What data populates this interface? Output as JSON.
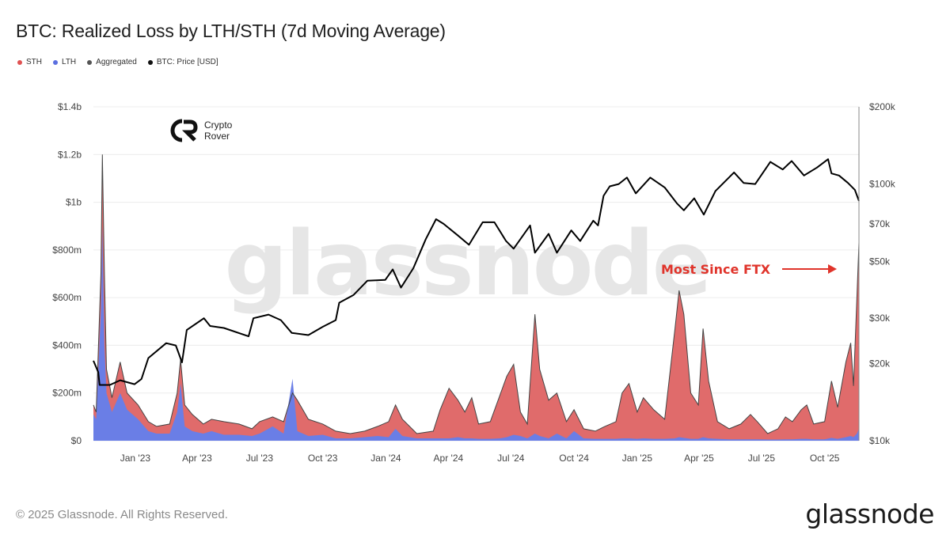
{
  "title": "BTC: Realized Loss by LTH/STH (7d Moving Average)",
  "legend": [
    {
      "label": "STH",
      "color": "#e05252"
    },
    {
      "label": "LTH",
      "color": "#5b6fe0"
    },
    {
      "label": "Aggregated",
      "color": "#555555"
    },
    {
      "label": "BTC: Price [USD]",
      "color": "#111111"
    }
  ],
  "watermark": "glassnode",
  "logo": {
    "line1": "Crypto",
    "line2": "Rover"
  },
  "annotation": "Most Since FTX",
  "footer": "© 2025 Glassnode. All Rights Reserved.",
  "brand": "glassnode",
  "colors": {
    "sth": "#e06b6b",
    "lth": "#6a7ee6",
    "aggregated": "#444444",
    "price": "#000000",
    "annotation": "#e0342b"
  },
  "chart_data": {
    "type": "area",
    "x_start": "2022-11-01",
    "x_end": "2025-11-20",
    "x_ticks": [
      "Jan '23",
      "Apr '23",
      "Jul '23",
      "Oct '23",
      "Jan '24",
      "Apr '24",
      "Jul '24",
      "Oct '24",
      "Jan '25",
      "Apr '25",
      "Jul '25",
      "Oct '25"
    ],
    "x_tick_dates": [
      "2023-01-01",
      "2023-04-01",
      "2023-07-01",
      "2023-10-01",
      "2024-01-01",
      "2024-04-01",
      "2024-07-01",
      "2024-10-01",
      "2025-01-01",
      "2025-04-01",
      "2025-07-01",
      "2025-10-01"
    ],
    "y_left": {
      "ticks": [
        "$0",
        "$200m",
        "$400m",
        "$600m",
        "$800m",
        "$1b",
        "$1.2b",
        "$1.4b"
      ],
      "range": [
        0,
        1400
      ],
      "unit": "USD millions"
    },
    "y_right": {
      "ticks": [
        "$10k",
        "$20k",
        "$30k",
        "$50k",
        "$70k",
        "$100k",
        "$200k"
      ],
      "tick_values": [
        10000,
        20000,
        30000,
        50000,
        70000,
        100000,
        200000
      ],
      "scale": "log",
      "range": [
        10000,
        200000
      ]
    },
    "series": [
      {
        "name": "STH",
        "role": "realized_loss_sth",
        "points": [
          [
            "2022-11-01",
            150
          ],
          [
            "2022-11-05",
            120
          ],
          [
            "2022-11-12",
            700
          ],
          [
            "2022-11-14",
            1200
          ],
          [
            "2022-11-17",
            700
          ],
          [
            "2022-11-20",
            300
          ],
          [
            "2022-11-28",
            180
          ],
          [
            "2022-12-10",
            330
          ],
          [
            "2022-12-20",
            200
          ],
          [
            "2023-01-05",
            150
          ],
          [
            "2023-01-20",
            80
          ],
          [
            "2023-02-01",
            60
          ],
          [
            "2023-02-20",
            70
          ],
          [
            "2023-03-03",
            200
          ],
          [
            "2023-03-08",
            340
          ],
          [
            "2023-03-14",
            150
          ],
          [
            "2023-03-25",
            110
          ],
          [
            "2023-04-10",
            70
          ],
          [
            "2023-04-22",
            90
          ],
          [
            "2023-05-10",
            80
          ],
          [
            "2023-06-01",
            70
          ],
          [
            "2023-06-20",
            50
          ],
          [
            "2023-07-01",
            80
          ],
          [
            "2023-07-20",
            100
          ],
          [
            "2023-08-05",
            80
          ],
          [
            "2023-08-18",
            200
          ],
          [
            "2023-08-25",
            170
          ],
          [
            "2023-09-10",
            90
          ],
          [
            "2023-10-01",
            70
          ],
          [
            "2023-10-20",
            40
          ],
          [
            "2023-11-10",
            30
          ],
          [
            "2023-12-01",
            40
          ],
          [
            "2023-12-20",
            60
          ],
          [
            "2024-01-05",
            80
          ],
          [
            "2024-01-15",
            150
          ],
          [
            "2024-01-25",
            90
          ],
          [
            "2024-02-15",
            30
          ],
          [
            "2024-03-10",
            40
          ],
          [
            "2024-03-20",
            130
          ],
          [
            "2024-04-02",
            220
          ],
          [
            "2024-04-15",
            170
          ],
          [
            "2024-04-25",
            120
          ],
          [
            "2024-05-05",
            180
          ],
          [
            "2024-05-15",
            70
          ],
          [
            "2024-06-01",
            80
          ],
          [
            "2024-06-15",
            190
          ],
          [
            "2024-06-25",
            270
          ],
          [
            "2024-07-05",
            320
          ],
          [
            "2024-07-15",
            120
          ],
          [
            "2024-07-25",
            70
          ],
          [
            "2024-08-05",
            530
          ],
          [
            "2024-08-12",
            300
          ],
          [
            "2024-08-25",
            170
          ],
          [
            "2024-09-06",
            200
          ],
          [
            "2024-09-20",
            80
          ],
          [
            "2024-10-01",
            130
          ],
          [
            "2024-10-15",
            50
          ],
          [
            "2024-11-01",
            40
          ],
          [
            "2024-11-15",
            60
          ],
          [
            "2024-12-01",
            80
          ],
          [
            "2024-12-10",
            200
          ],
          [
            "2024-12-20",
            240
          ],
          [
            "2025-01-01",
            120
          ],
          [
            "2025-01-10",
            180
          ],
          [
            "2025-01-25",
            130
          ],
          [
            "2025-02-10",
            90
          ],
          [
            "2025-02-25",
            470
          ],
          [
            "2025-03-03",
            630
          ],
          [
            "2025-03-10",
            530
          ],
          [
            "2025-03-20",
            200
          ],
          [
            "2025-03-31",
            150
          ],
          [
            "2025-04-07",
            470
          ],
          [
            "2025-04-15",
            250
          ],
          [
            "2025-04-28",
            80
          ],
          [
            "2025-05-15",
            50
          ],
          [
            "2025-06-01",
            70
          ],
          [
            "2025-06-15",
            110
          ],
          [
            "2025-06-25",
            80
          ],
          [
            "2025-07-10",
            30
          ],
          [
            "2025-07-25",
            50
          ],
          [
            "2025-08-05",
            100
          ],
          [
            "2025-08-15",
            80
          ],
          [
            "2025-08-28",
            130
          ],
          [
            "2025-09-05",
            150
          ],
          [
            "2025-09-15",
            70
          ],
          [
            "2025-10-01",
            80
          ],
          [
            "2025-10-11",
            250
          ],
          [
            "2025-10-20",
            140
          ],
          [
            "2025-11-01",
            330
          ],
          [
            "2025-11-08",
            410
          ],
          [
            "2025-11-12",
            230
          ],
          [
            "2025-11-17",
            600
          ],
          [
            "2025-11-20",
            830
          ]
        ]
      },
      {
        "name": "LTH",
        "role": "realized_loss_lth",
        "points": [
          [
            "2022-11-01",
            110
          ],
          [
            "2022-11-05",
            90
          ],
          [
            "2022-11-12",
            550
          ],
          [
            "2022-11-14",
            900
          ],
          [
            "2022-11-17",
            400
          ],
          [
            "2022-11-20",
            200
          ],
          [
            "2022-11-28",
            120
          ],
          [
            "2022-12-10",
            200
          ],
          [
            "2022-12-20",
            130
          ],
          [
            "2023-01-05",
            90
          ],
          [
            "2023-01-20",
            40
          ],
          [
            "2023-02-01",
            30
          ],
          [
            "2023-02-20",
            30
          ],
          [
            "2023-03-03",
            120
          ],
          [
            "2023-03-08",
            240
          ],
          [
            "2023-03-14",
            60
          ],
          [
            "2023-03-25",
            40
          ],
          [
            "2023-04-10",
            30
          ],
          [
            "2023-04-22",
            40
          ],
          [
            "2023-05-10",
            25
          ],
          [
            "2023-06-01",
            25
          ],
          [
            "2023-06-20",
            20
          ],
          [
            "2023-07-01",
            30
          ],
          [
            "2023-07-20",
            60
          ],
          [
            "2023-08-05",
            30
          ],
          [
            "2023-08-18",
            260
          ],
          [
            "2023-08-25",
            40
          ],
          [
            "2023-09-10",
            20
          ],
          [
            "2023-10-01",
            25
          ],
          [
            "2023-10-20",
            10
          ],
          [
            "2023-11-10",
            10
          ],
          [
            "2023-12-01",
            15
          ],
          [
            "2023-12-20",
            20
          ],
          [
            "2024-01-05",
            15
          ],
          [
            "2024-01-15",
            50
          ],
          [
            "2024-01-25",
            20
          ],
          [
            "2024-02-15",
            10
          ],
          [
            "2024-03-10",
            10
          ],
          [
            "2024-03-20",
            10
          ],
          [
            "2024-04-02",
            10
          ],
          [
            "2024-04-15",
            15
          ],
          [
            "2024-04-25",
            10
          ],
          [
            "2024-05-05",
            10
          ],
          [
            "2024-05-15",
            8
          ],
          [
            "2024-06-01",
            8
          ],
          [
            "2024-06-15",
            10
          ],
          [
            "2024-06-25",
            15
          ],
          [
            "2024-07-05",
            25
          ],
          [
            "2024-07-15",
            20
          ],
          [
            "2024-07-25",
            10
          ],
          [
            "2024-08-05",
            30
          ],
          [
            "2024-08-12",
            20
          ],
          [
            "2024-08-25",
            10
          ],
          [
            "2024-09-06",
            30
          ],
          [
            "2024-09-20",
            10
          ],
          [
            "2024-10-01",
            40
          ],
          [
            "2024-10-15",
            10
          ],
          [
            "2024-11-01",
            8
          ],
          [
            "2024-11-15",
            8
          ],
          [
            "2024-12-01",
            8
          ],
          [
            "2024-12-10",
            10
          ],
          [
            "2024-12-20",
            10
          ],
          [
            "2025-01-01",
            8
          ],
          [
            "2025-01-10",
            10
          ],
          [
            "2025-01-25",
            8
          ],
          [
            "2025-02-10",
            8
          ],
          [
            "2025-02-25",
            10
          ],
          [
            "2025-03-03",
            15
          ],
          [
            "2025-03-10",
            12
          ],
          [
            "2025-03-20",
            8
          ],
          [
            "2025-03-31",
            8
          ],
          [
            "2025-04-07",
            15
          ],
          [
            "2025-04-15",
            10
          ],
          [
            "2025-04-28",
            8
          ],
          [
            "2025-05-15",
            6
          ],
          [
            "2025-06-01",
            6
          ],
          [
            "2025-06-15",
            6
          ],
          [
            "2025-06-25",
            6
          ],
          [
            "2025-07-10",
            5
          ],
          [
            "2025-07-25",
            5
          ],
          [
            "2025-08-05",
            6
          ],
          [
            "2025-08-15",
            6
          ],
          [
            "2025-08-28",
            8
          ],
          [
            "2025-09-05",
            8
          ],
          [
            "2025-09-15",
            6
          ],
          [
            "2025-10-01",
            6
          ],
          [
            "2025-10-11",
            12
          ],
          [
            "2025-10-20",
            8
          ],
          [
            "2025-11-01",
            15
          ],
          [
            "2025-11-08",
            20
          ],
          [
            "2025-11-12",
            15
          ],
          [
            "2025-11-17",
            30
          ],
          [
            "2025-11-20",
            50
          ]
        ]
      },
      {
        "name": "BTC: Price [USD]",
        "role": "price",
        "points": [
          [
            "2022-11-01",
            20500
          ],
          [
            "2022-11-08",
            18500
          ],
          [
            "2022-11-10",
            16500
          ],
          [
            "2022-11-25",
            16500
          ],
          [
            "2022-12-10",
            17200
          ],
          [
            "2022-12-31",
            16600
          ],
          [
            "2023-01-10",
            17400
          ],
          [
            "2023-01-20",
            21000
          ],
          [
            "2023-02-15",
            24000
          ],
          [
            "2023-03-01",
            23500
          ],
          [
            "2023-03-10",
            20200
          ],
          [
            "2023-03-17",
            27000
          ],
          [
            "2023-04-11",
            30000
          ],
          [
            "2023-04-20",
            28000
          ],
          [
            "2023-05-10",
            27500
          ],
          [
            "2023-06-15",
            25500
          ],
          [
            "2023-06-22",
            30000
          ],
          [
            "2023-07-14",
            31000
          ],
          [
            "2023-08-01",
            29500
          ],
          [
            "2023-08-17",
            26300
          ],
          [
            "2023-09-10",
            25800
          ],
          [
            "2023-10-01",
            27800
          ],
          [
            "2023-10-20",
            29500
          ],
          [
            "2023-10-25",
            34500
          ],
          [
            "2023-11-15",
            37000
          ],
          [
            "2023-12-05",
            42000
          ],
          [
            "2023-12-31",
            42300
          ],
          [
            "2024-01-11",
            46500
          ],
          [
            "2024-01-23",
            39500
          ],
          [
            "2024-02-10",
            47000
          ],
          [
            "2024-02-28",
            61000
          ],
          [
            "2024-03-14",
            73000
          ],
          [
            "2024-03-25",
            70000
          ],
          [
            "2024-04-15",
            63000
          ],
          [
            "2024-05-01",
            58000
          ],
          [
            "2024-05-21",
            71000
          ],
          [
            "2024-06-07",
            71000
          ],
          [
            "2024-06-24",
            60000
          ],
          [
            "2024-07-05",
            56000
          ],
          [
            "2024-07-29",
            69000
          ],
          [
            "2024-08-05",
            54000
          ],
          [
            "2024-08-25",
            64000
          ],
          [
            "2024-09-06",
            54000
          ],
          [
            "2024-09-27",
            66000
          ],
          [
            "2024-10-10",
            60000
          ],
          [
            "2024-10-29",
            72000
          ],
          [
            "2024-11-05",
            69000
          ],
          [
            "2024-11-13",
            90000
          ],
          [
            "2024-11-22",
            98000
          ],
          [
            "2024-12-05",
            100000
          ],
          [
            "2024-12-17",
            106000
          ],
          [
            "2024-12-30",
            92000
          ],
          [
            "2025-01-20",
            106000
          ],
          [
            "2025-02-10",
            97000
          ],
          [
            "2025-02-28",
            84000
          ],
          [
            "2025-03-10",
            79000
          ],
          [
            "2025-03-25",
            88000
          ],
          [
            "2025-04-08",
            76000
          ],
          [
            "2025-04-25",
            94000
          ],
          [
            "2025-05-22",
            111000
          ],
          [
            "2025-06-05",
            101000
          ],
          [
            "2025-06-22",
            100000
          ],
          [
            "2025-07-14",
            122000
          ],
          [
            "2025-08-01",
            114000
          ],
          [
            "2025-08-14",
            123000
          ],
          [
            "2025-09-01",
            108000
          ],
          [
            "2025-09-20",
            116000
          ],
          [
            "2025-10-06",
            125000
          ],
          [
            "2025-10-11",
            110000
          ],
          [
            "2025-10-22",
            108000
          ],
          [
            "2025-11-04",
            101000
          ],
          [
            "2025-11-14",
            95000
          ],
          [
            "2025-11-20",
            86000
          ]
        ]
      }
    ]
  }
}
